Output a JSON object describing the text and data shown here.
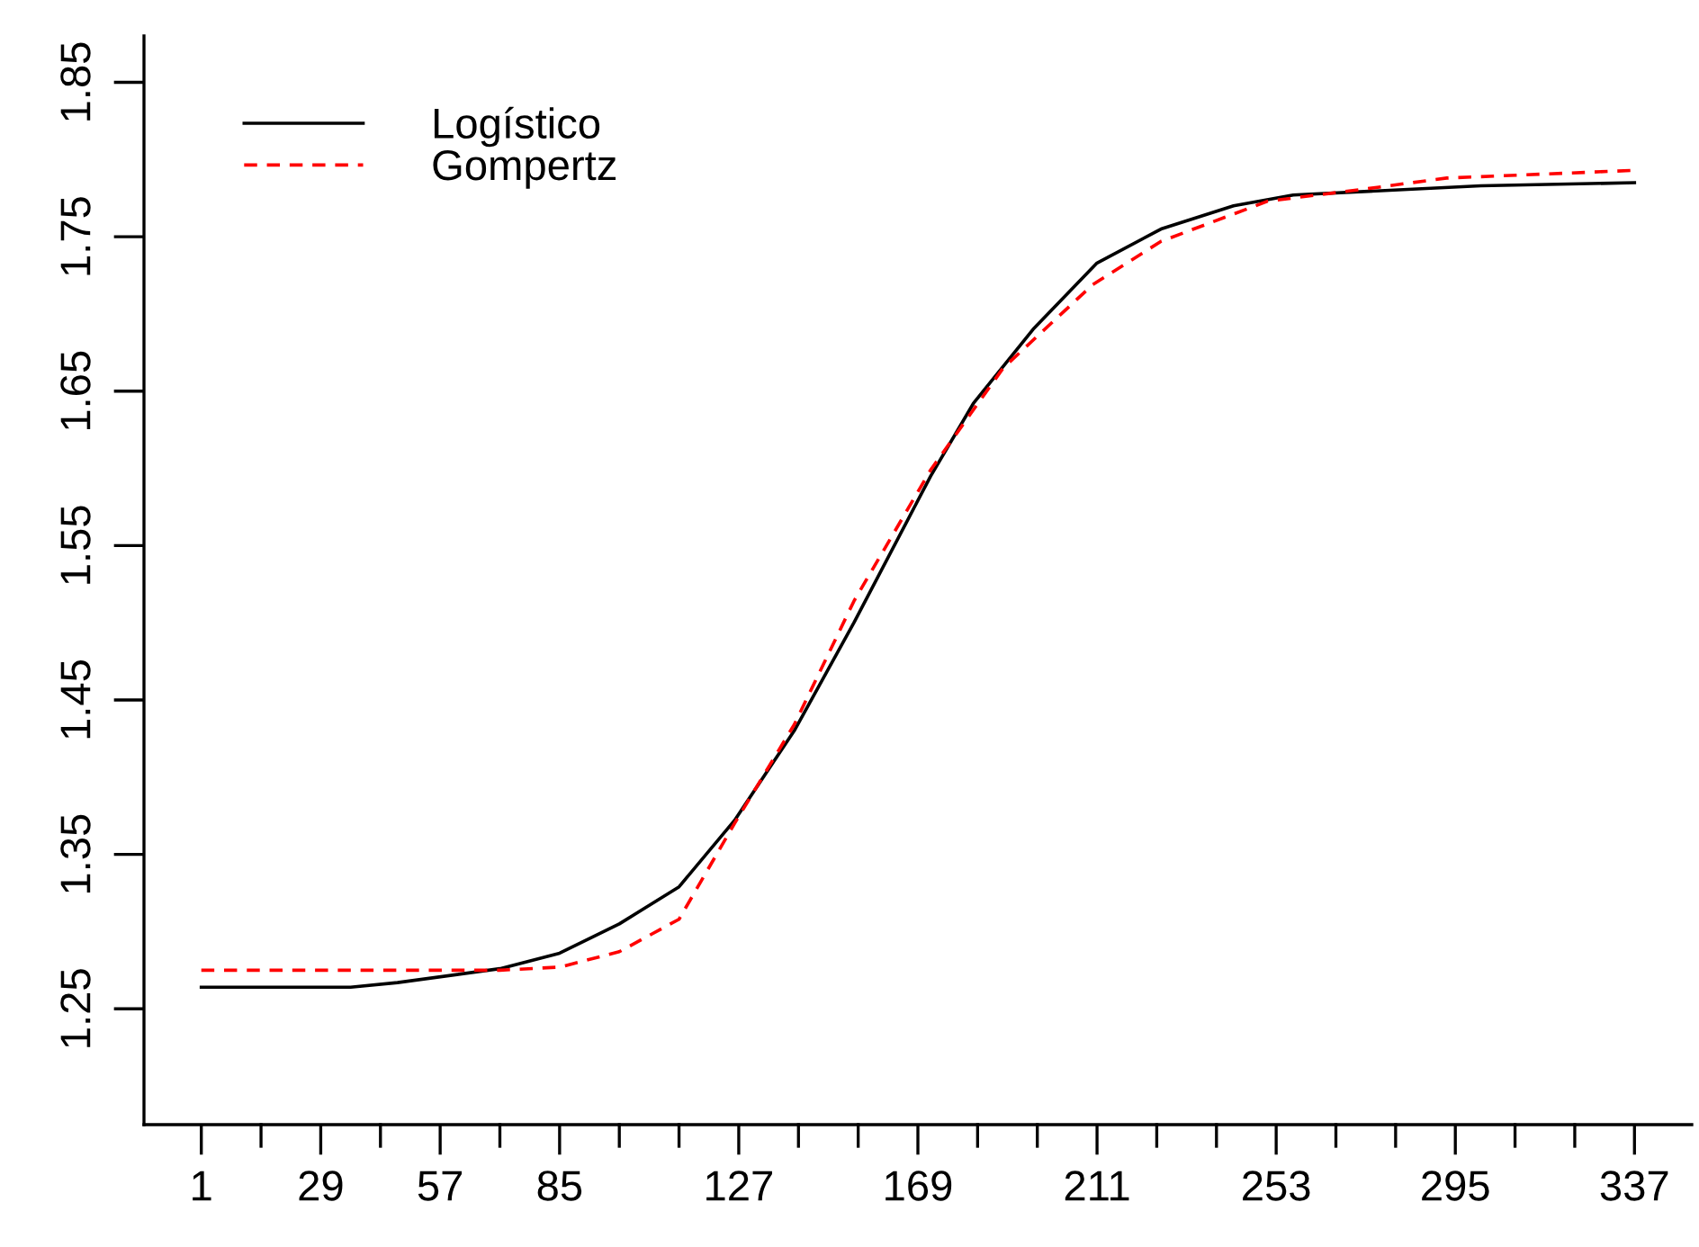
{
  "chart_data": {
    "type": "line",
    "xlim": [
      -12.44,
      350.44
    ],
    "ylim": [
      1.175,
      1.88
    ],
    "xticks": [
      1,
      {
        "value": 15,
        "label": null
      },
      29,
      {
        "value": 43,
        "label": null
      },
      57,
      {
        "value": 71,
        "label": null
      },
      85,
      {
        "value": 99,
        "label": null
      },
      {
        "value": 113,
        "label": null
      },
      127,
      {
        "value": 141,
        "label": null
      },
      {
        "value": 155,
        "label": null
      },
      169,
      {
        "value": 183,
        "label": null
      },
      {
        "value": 197,
        "label": null
      },
      211,
      {
        "value": 225,
        "label": null
      },
      {
        "value": 239,
        "label": null
      },
      253,
      {
        "value": 267,
        "label": null
      },
      {
        "value": 281,
        "label": null
      },
      295,
      {
        "value": 309,
        "label": null
      },
      {
        "value": 323,
        "label": null
      },
      337
    ],
    "yticks": [
      1.25,
      1.35,
      1.45,
      1.55,
      1.65,
      1.75,
      1.85
    ],
    "grid": false,
    "legend": "top left",
    "series": [
      {
        "name": "Logístico",
        "color": "#000000",
        "line_style": "solid",
        "x": [
          1,
          36,
          47,
          71,
          85,
          99,
          113,
          126,
          140,
          154,
          172,
          182,
          196,
          211,
          226,
          243,
          257,
          301,
          337
        ],
        "values": [
          1.264,
          1.264,
          1.267,
          1.276,
          1.286,
          1.305,
          1.329,
          1.372,
          1.43,
          1.5,
          1.595,
          1.642,
          1.69,
          1.733,
          1.755,
          1.77,
          1.777,
          1.783,
          1.785
        ]
      },
      {
        "name": "Gompertz",
        "color": "#ff0000",
        "line_style": "dashed",
        "x": [
          1,
          71,
          85,
          99,
          113,
          126,
          140,
          154,
          172,
          189,
          210,
          226,
          251,
          274,
          293,
          337
        ],
        "values": [
          1.275,
          1.275,
          1.277,
          1.287,
          1.308,
          1.37,
          1.434,
          1.514,
          1.599,
          1.665,
          1.719,
          1.747,
          1.773,
          1.781,
          1.788,
          1.793
        ]
      }
    ]
  }
}
